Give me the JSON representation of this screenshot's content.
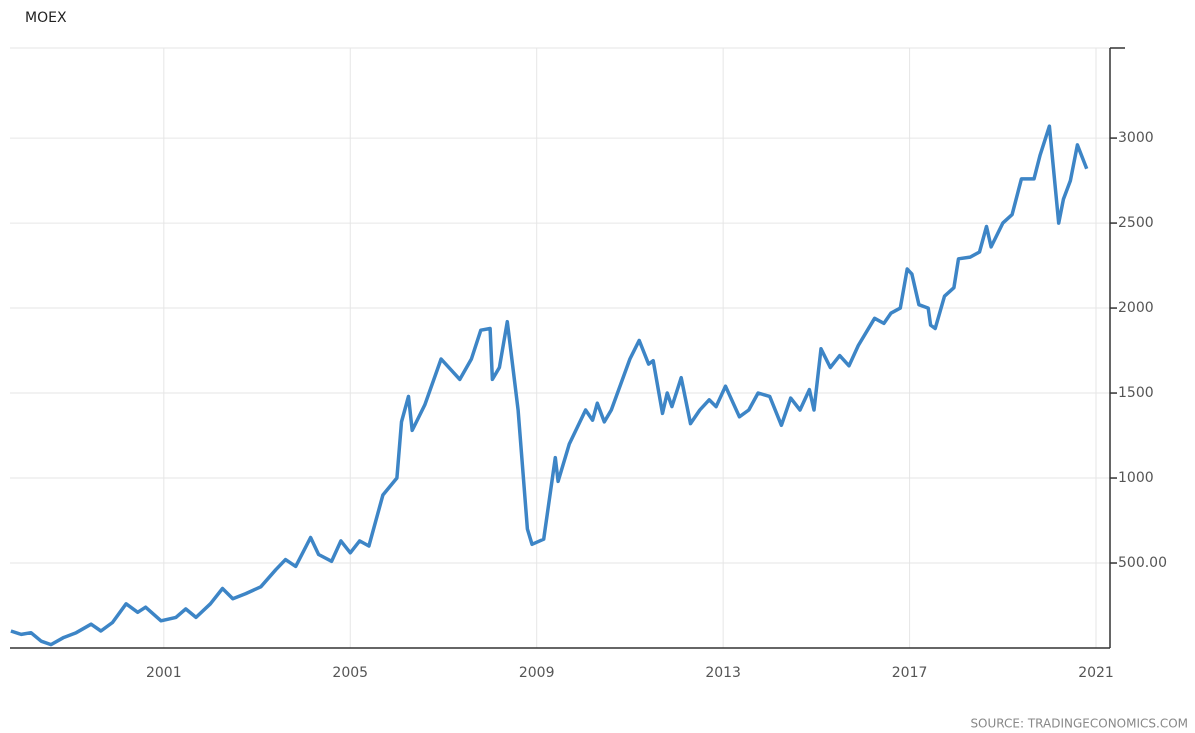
{
  "chart_data": {
    "type": "line",
    "title": "MOEX",
    "source": "SOURCE: TRADINGECONOMICS.COM",
    "x": [
      1997.72,
      1997.94,
      1998.15,
      1998.37,
      1998.58,
      1998.84,
      1999.12,
      1999.44,
      1999.65,
      1999.9,
      2000.19,
      2000.44,
      2000.61,
      2000.94,
      2001.26,
      2001.47,
      2001.69,
      2002.0,
      2002.26,
      2002.48,
      2002.76,
      2003.08,
      2003.4,
      2003.61,
      2003.83,
      2004.15,
      2004.32,
      2004.6,
      2004.8,
      2005.0,
      2005.2,
      2005.4,
      2005.7,
      2006.0,
      2006.1,
      2006.25,
      2006.33,
      2006.6,
      2006.95,
      2007.35,
      2007.6,
      2007.8,
      2008.0,
      2008.05,
      2008.2,
      2008.37,
      2008.6,
      2008.8,
      2008.9,
      2009.15,
      2009.4,
      2009.46,
      2009.7,
      2010.05,
      2010.2,
      2010.3,
      2010.45,
      2010.6,
      2011.0,
      2011.2,
      2011.4,
      2011.5,
      2011.7,
      2011.8,
      2011.9,
      2012.1,
      2012.3,
      2012.5,
      2012.7,
      2012.85,
      2013.05,
      2013.35,
      2013.55,
      2013.75,
      2014.0,
      2014.25,
      2014.45,
      2014.65,
      2014.85,
      2014.95,
      2015.1,
      2015.3,
      2015.5,
      2015.7,
      2015.9,
      2016.25,
      2016.45,
      2016.6,
      2016.8,
      2016.95,
      2017.05,
      2017.2,
      2017.4,
      2017.45,
      2017.55,
      2017.75,
      2017.95,
      2018.05,
      2018.3,
      2018.5,
      2018.65,
      2018.75,
      2019.0,
      2019.2,
      2019.4,
      2019.67,
      2019.8,
      2020.0,
      2020.2,
      2020.3,
      2020.45,
      2020.6,
      2020.8
    ],
    "series": [
      {
        "name": "MOEX",
        "color": "#3d85c6",
        "values": [
          100,
          80,
          90,
          40,
          20,
          60,
          90,
          140,
          100,
          150,
          260,
          210,
          240,
          160,
          180,
          230,
          180,
          260,
          350,
          290,
          320,
          360,
          460,
          520,
          480,
          650,
          550,
          510,
          630,
          560,
          630,
          600,
          900,
          1000,
          1330,
          1480,
          1280,
          1430,
          1700,
          1580,
          1700,
          1870,
          1880,
          1580,
          1650,
          1920,
          1400,
          700,
          610,
          640,
          1120,
          980,
          1200,
          1400,
          1340,
          1440,
          1330,
          1400,
          1700,
          1810,
          1670,
          1690,
          1380,
          1500,
          1420,
          1590,
          1320,
          1400,
          1460,
          1420,
          1540,
          1360,
          1400,
          1500,
          1480,
          1310,
          1470,
          1400,
          1520,
          1400,
          1760,
          1650,
          1720,
          1660,
          1780,
          1940,
          1910,
          1970,
          2000,
          2230,
          2200,
          2020,
          2000,
          1900,
          1880,
          2070,
          2120,
          2290,
          2300,
          2330,
          2480,
          2360,
          2500,
          2550,
          2760,
          2760,
          2900,
          3070,
          2500,
          2640,
          2750,
          2960,
          2820
        ]
      }
    ],
    "xlim": [
      1997.7,
      2021.3
    ],
    "xticks": [
      2001,
      2005,
      2009,
      2013,
      2017,
      2021
    ],
    "ylim": [
      0,
      3530
    ],
    "yticks": [
      {
        "value": 500,
        "label": "500.00"
      },
      1000,
      1500,
      2000,
      2500,
      3000
    ],
    "grid": true
  }
}
